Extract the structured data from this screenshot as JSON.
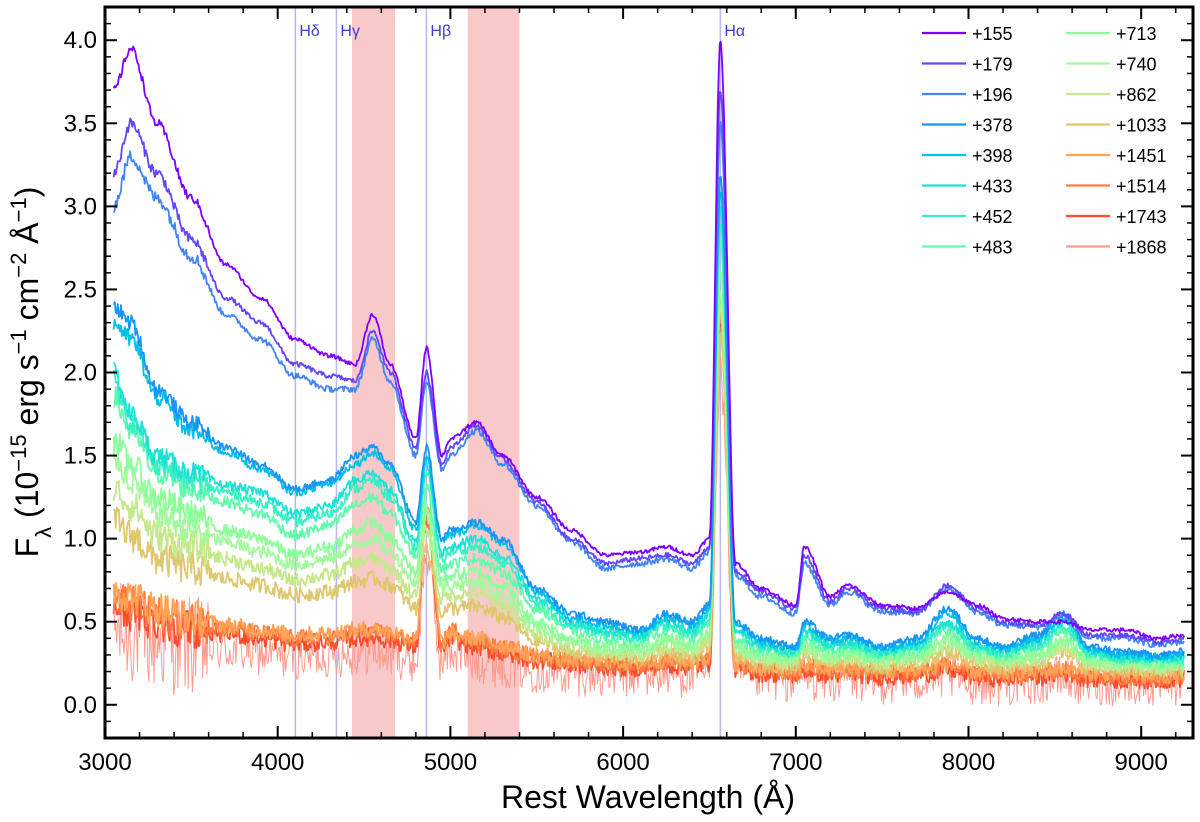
{
  "chart_data": {
    "type": "line",
    "xlabel": "Rest Wavelength (Å)",
    "ylabel_parts": [
      "F",
      "λ",
      " (10",
      "−15",
      " erg s",
      "−1",
      " cm",
      "−2",
      " Å",
      "−1",
      ")"
    ],
    "xlim": [
      3000,
      9300
    ],
    "ylim": [
      -0.2,
      4.2
    ],
    "xticks": [
      3000,
      4000,
      5000,
      6000,
      7000,
      8000,
      9000
    ],
    "xtick_labels": [
      "3000",
      "4000",
      "5000",
      "6000",
      "7000",
      "8000",
      "9000"
    ],
    "yticks": [
      0.0,
      0.5,
      1.0,
      1.5,
      2.0,
      2.5,
      3.0,
      3.5,
      4.0
    ],
    "ytick_labels": [
      "0.0",
      "0.5",
      "1.0",
      "1.5",
      "2.0",
      "2.5",
      "3.0",
      "3.5",
      "4.0"
    ],
    "shaded_bands": [
      {
        "from": 4430,
        "to": 4680,
        "color": "#f9c9c9"
      },
      {
        "from": 5100,
        "to": 5400,
        "color": "#f9c9c9"
      }
    ],
    "line_markers": [
      {
        "label": "Hδ",
        "x": 4102
      },
      {
        "label": "Hγ",
        "x": 4340
      },
      {
        "label": "Hβ",
        "x": 4861
      },
      {
        "label": "Hα",
        "x": 6563
      }
    ],
    "line_marker_color": "#b8b8ee",
    "line_label_color": "#3d3dd6",
    "anchor_x": [
      3050,
      3150,
      3300,
      3500,
      3700,
      3900,
      4100,
      4300,
      4450,
      4550,
      4650,
      4800,
      4861,
      4950,
      5000,
      5150,
      5300,
      5500,
      5700,
      5900,
      6100,
      6250,
      6400,
      6500,
      6563,
      6650,
      6800,
      7000,
      7050,
      7200,
      7300,
      7500,
      7700,
      7880,
      8050,
      8200,
      8400,
      8550,
      8700,
      8900,
      9100,
      9250
    ],
    "series": [
      {
        "name": "+155",
        "color": "#8000ff",
        "values": [
          3.7,
          3.95,
          3.5,
          3.05,
          2.65,
          2.45,
          2.2,
          2.1,
          2.05,
          2.35,
          2.05,
          1.6,
          2.15,
          1.5,
          1.6,
          1.7,
          1.5,
          1.25,
          1.05,
          0.9,
          0.92,
          0.95,
          0.9,
          1.0,
          4.0,
          0.85,
          0.7,
          0.6,
          0.95,
          0.65,
          0.72,
          0.6,
          0.58,
          0.68,
          0.6,
          0.52,
          0.5,
          0.5,
          0.45,
          0.45,
          0.4,
          0.42
        ]
      },
      {
        "name": "+179",
        "color": "#6346fe",
        "values": [
          3.2,
          3.5,
          3.2,
          2.8,
          2.45,
          2.3,
          2.05,
          1.98,
          1.95,
          2.25,
          2.0,
          1.55,
          2.0,
          1.45,
          1.55,
          1.68,
          1.48,
          1.22,
          1.0,
          0.85,
          0.88,
          0.9,
          0.85,
          0.95,
          3.7,
          0.8,
          0.68,
          0.58,
          0.9,
          0.62,
          0.7,
          0.58,
          0.56,
          0.72,
          0.58,
          0.5,
          0.48,
          0.55,
          0.42,
          0.42,
          0.38,
          0.4
        ]
      },
      {
        "name": "+196",
        "color": "#4285f5",
        "values": [
          3.0,
          3.3,
          3.05,
          2.7,
          2.35,
          2.2,
          1.98,
          1.9,
          1.9,
          2.2,
          1.95,
          1.5,
          1.95,
          1.42,
          1.5,
          1.65,
          1.45,
          1.2,
          0.98,
          0.82,
          0.85,
          0.88,
          0.82,
          0.92,
          3.5,
          0.78,
          0.65,
          0.55,
          0.85,
          0.6,
          0.68,
          0.56,
          0.55,
          0.7,
          0.56,
          0.48,
          0.47,
          0.53,
          0.4,
          0.4,
          0.36,
          0.38
        ]
      },
      {
        "name": "+378",
        "color": "#1996f3",
        "values": [
          2.4,
          2.3,
          1.9,
          1.7,
          1.55,
          1.45,
          1.3,
          1.35,
          1.5,
          1.55,
          1.45,
          1.1,
          1.55,
          1.0,
          1.05,
          1.1,
          1.0,
          0.7,
          0.55,
          0.5,
          0.45,
          0.55,
          0.5,
          0.6,
          3.2,
          0.5,
          0.4,
          0.35,
          0.5,
          0.4,
          0.42,
          0.35,
          0.4,
          0.58,
          0.4,
          0.35,
          0.42,
          0.55,
          0.35,
          0.32,
          0.3,
          0.32
        ]
      },
      {
        "name": "+398",
        "color": "#00bfe8",
        "values": [
          2.3,
          2.2,
          1.85,
          1.65,
          1.52,
          1.42,
          1.28,
          1.33,
          1.45,
          1.52,
          1.42,
          1.05,
          1.5,
          0.98,
          1.02,
          1.08,
          0.98,
          0.68,
          0.52,
          0.48,
          0.44,
          0.52,
          0.48,
          0.58,
          3.1,
          0.48,
          0.38,
          0.34,
          0.48,
          0.38,
          0.4,
          0.34,
          0.38,
          0.55,
          0.38,
          0.34,
          0.4,
          0.52,
          0.34,
          0.3,
          0.29,
          0.3
        ]
      },
      {
        "name": "+433",
        "color": "#1ee1d6",
        "values": [
          2.0,
          1.75,
          1.5,
          1.4,
          1.32,
          1.28,
          1.15,
          1.2,
          1.35,
          1.4,
          1.3,
          0.98,
          1.45,
          0.92,
          0.95,
          1.0,
          0.9,
          0.65,
          0.5,
          0.45,
          0.42,
          0.5,
          0.45,
          0.55,
          3.0,
          0.45,
          0.36,
          0.32,
          0.45,
          0.36,
          0.38,
          0.32,
          0.36,
          0.5,
          0.36,
          0.32,
          0.38,
          0.5,
          0.32,
          0.29,
          0.28,
          0.29
        ]
      },
      {
        "name": "+452",
        "color": "#38f0c4",
        "values": [
          1.95,
          1.7,
          1.45,
          1.35,
          1.28,
          1.22,
          1.1,
          1.15,
          1.3,
          1.35,
          1.25,
          0.95,
          1.4,
          0.88,
          0.92,
          0.95,
          0.86,
          0.62,
          0.48,
          0.43,
          0.4,
          0.48,
          0.43,
          0.52,
          2.9,
          0.43,
          0.35,
          0.31,
          0.43,
          0.35,
          0.36,
          0.31,
          0.35,
          0.48,
          0.35,
          0.31,
          0.36,
          0.48,
          0.31,
          0.28,
          0.27,
          0.28
        ]
      },
      {
        "name": "+483",
        "color": "#62fbae",
        "values": [
          1.85,
          1.65,
          1.4,
          1.3,
          1.22,
          1.15,
          1.02,
          1.08,
          1.2,
          1.25,
          1.15,
          0.9,
          1.3,
          0.82,
          0.85,
          0.88,
          0.8,
          0.58,
          0.45,
          0.4,
          0.38,
          0.45,
          0.4,
          0.5,
          2.8,
          0.4,
          0.33,
          0.3,
          0.4,
          0.33,
          0.34,
          0.3,
          0.33,
          0.45,
          0.33,
          0.3,
          0.34,
          0.45,
          0.3,
          0.27,
          0.26,
          0.27
        ]
      },
      {
        "name": "+713",
        "color": "#8cfe9a",
        "values": [
          1.6,
          1.45,
          1.25,
          1.15,
          1.05,
          1.0,
          0.9,
          0.95,
          1.05,
          1.1,
          1.0,
          0.8,
          1.2,
          0.75,
          0.78,
          0.8,
          0.72,
          0.5,
          0.4,
          0.36,
          0.34,
          0.4,
          0.36,
          0.44,
          2.6,
          0.36,
          0.3,
          0.28,
          0.36,
          0.3,
          0.32,
          0.28,
          0.3,
          0.4,
          0.3,
          0.28,
          0.3,
          0.4,
          0.28,
          0.25,
          0.24,
          0.25
        ]
      },
      {
        "name": "+740",
        "color": "#a4f89e",
        "values": [
          1.5,
          1.35,
          1.15,
          1.05,
          0.98,
          0.92,
          0.84,
          0.88,
          0.96,
          1.0,
          0.92,
          0.74,
          1.15,
          0.7,
          0.72,
          0.74,
          0.66,
          0.46,
          0.38,
          0.34,
          0.32,
          0.38,
          0.34,
          0.42,
          2.5,
          0.34,
          0.29,
          0.27,
          0.34,
          0.29,
          0.3,
          0.27,
          0.29,
          0.38,
          0.29,
          0.27,
          0.29,
          0.38,
          0.27,
          0.24,
          0.23,
          0.24
        ]
      },
      {
        "name": "+862",
        "color": "#c4e88a",
        "values": [
          1.3,
          1.2,
          1.02,
          0.95,
          0.88,
          0.82,
          0.75,
          0.78,
          0.85,
          0.88,
          0.82,
          0.66,
          1.05,
          0.64,
          0.66,
          0.67,
          0.6,
          0.42,
          0.35,
          0.32,
          0.3,
          0.35,
          0.32,
          0.38,
          2.4,
          0.32,
          0.27,
          0.25,
          0.32,
          0.27,
          0.28,
          0.25,
          0.27,
          0.35,
          0.27,
          0.25,
          0.27,
          0.35,
          0.25,
          0.23,
          0.22,
          0.23
        ]
      },
      {
        "name": "+1033",
        "color": "#dfc76e",
        "values": [
          1.1,
          1.02,
          0.88,
          0.82,
          0.76,
          0.72,
          0.66,
          0.68,
          0.74,
          0.76,
          0.72,
          0.58,
          0.95,
          0.56,
          0.58,
          0.59,
          0.53,
          0.38,
          0.32,
          0.3,
          0.28,
          0.32,
          0.29,
          0.35,
          2.2,
          0.3,
          0.25,
          0.23,
          0.3,
          0.25,
          0.26,
          0.23,
          0.25,
          0.32,
          0.25,
          0.23,
          0.25,
          0.32,
          0.23,
          0.21,
          0.2,
          0.21
        ]
      },
      {
        "name": "+1451",
        "color": "#ffa256",
        "values": [
          0.7,
          0.65,
          0.58,
          0.52,
          0.48,
          0.45,
          0.42,
          0.43,
          0.45,
          0.46,
          0.44,
          0.4,
          1.2,
          0.38,
          0.42,
          0.4,
          0.36,
          0.3,
          0.27,
          0.26,
          0.25,
          0.27,
          0.26,
          0.28,
          2.4,
          0.25,
          0.22,
          0.2,
          0.24,
          0.21,
          0.22,
          0.2,
          0.21,
          0.24,
          0.2,
          0.19,
          0.2,
          0.22,
          0.19,
          0.18,
          0.17,
          0.18
        ]
      },
      {
        "name": "+1514",
        "color": "#ff7b41",
        "values": [
          0.65,
          0.6,
          0.54,
          0.5,
          0.46,
          0.43,
          0.4,
          0.41,
          0.43,
          0.44,
          0.42,
          0.38,
          1.15,
          0.36,
          0.45,
          0.38,
          0.34,
          0.29,
          0.26,
          0.25,
          0.24,
          0.26,
          0.25,
          0.27,
          2.35,
          0.24,
          0.21,
          0.19,
          0.23,
          0.2,
          0.21,
          0.19,
          0.2,
          0.23,
          0.19,
          0.18,
          0.19,
          0.21,
          0.18,
          0.17,
          0.16,
          0.17
        ]
      },
      {
        "name": "+1743",
        "color": "#ff4c2a",
        "values": [
          0.6,
          0.56,
          0.5,
          0.46,
          0.43,
          0.4,
          0.37,
          0.38,
          0.4,
          0.41,
          0.39,
          0.35,
          1.1,
          0.33,
          0.4,
          0.35,
          0.31,
          0.27,
          0.24,
          0.23,
          0.22,
          0.24,
          0.23,
          0.25,
          2.3,
          0.22,
          0.19,
          0.18,
          0.21,
          0.18,
          0.19,
          0.17,
          0.18,
          0.21,
          0.17,
          0.16,
          0.17,
          0.19,
          0.16,
          0.15,
          0.15,
          0.16
        ]
      },
      {
        "name": "+1868",
        "color": "#ff9a8e",
        "values": [
          0.45,
          0.42,
          0.38,
          0.35,
          0.33,
          0.31,
          0.29,
          0.3,
          0.31,
          0.32,
          0.3,
          0.27,
          0.9,
          0.26,
          0.32,
          0.27,
          0.24,
          0.21,
          0.19,
          0.18,
          0.18,
          0.19,
          0.18,
          0.2,
          2.0,
          0.18,
          0.16,
          0.15,
          0.17,
          0.15,
          0.16,
          0.14,
          0.15,
          0.17,
          0.14,
          0.13,
          0.14,
          0.16,
          0.13,
          0.13,
          0.12,
          0.13
        ]
      }
    ]
  }
}
